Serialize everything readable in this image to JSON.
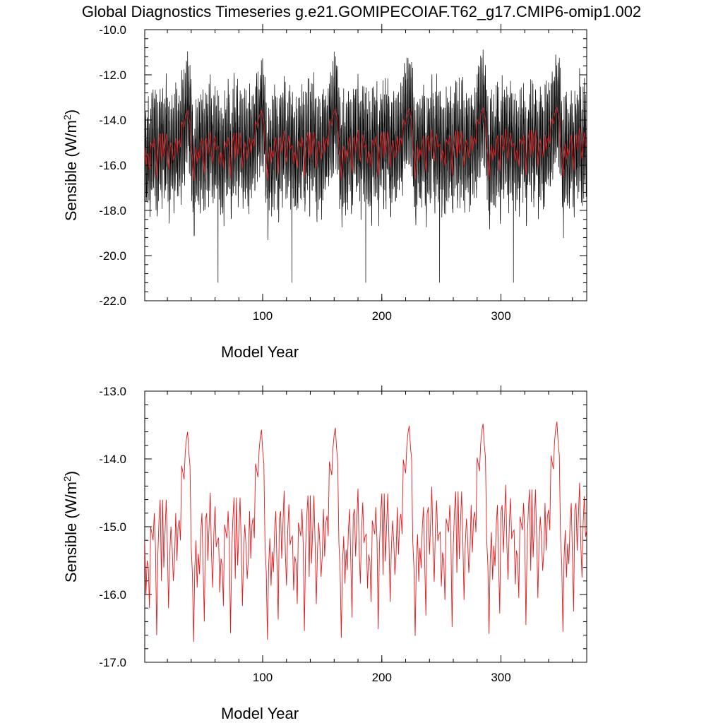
{
  "figure": {
    "title": "Global Diagnostics Timeseries g.e21.GOMIPECOIAF.T62_g17.CMIP6-omip1.002"
  },
  "chart_data": [
    {
      "type": "line",
      "xlabel": "Model Year",
      "ylabel": "Sensible (W/m²)",
      "ylabel_base": "Sensible (W/m",
      "ylabel_sup": "2",
      "ylabel_close": ")",
      "xlim": [
        1,
        372
      ],
      "ylim": [
        -22.0,
        -10.0
      ],
      "xticks": [
        100,
        200,
        300
      ],
      "yticks": [
        "-22.0",
        "-20.0",
        "-18.0",
        "-16.0",
        "-14.0",
        "-12.0",
        "-10.0"
      ],
      "grid": false,
      "legend": "none",
      "colors": {
        "monthly": "#000000",
        "annual": "#e41a1c"
      },
      "series_description": {
        "monthly": "Monthly global mean values oscillating roughly between -19.0 and -13.0, with spikes down to about -21.2 near years 62, 124, 186, 248, 310 and peaks near -11.5 shortly before each spike (repeating ~62-year forcing cycle).",
        "annual": "Annual means (same as lower panel) overlaid in red."
      },
      "monthly_range_typical": [
        -19.0,
        -13.0
      ],
      "monthly_min_spikes": [
        {
          "x": 62,
          "y": -21.2
        },
        {
          "x": 124,
          "y": -21.2
        },
        {
          "x": 186,
          "y": -21.2
        },
        {
          "x": 248,
          "y": -21.2
        },
        {
          "x": 310,
          "y": -21.2
        }
      ],
      "monthly_max_peaks": [
        {
          "x": 58,
          "y": -11.8
        },
        {
          "x": 120,
          "y": -11.6
        },
        {
          "x": 182,
          "y": -11.7
        },
        {
          "x": 244,
          "y": -11.6
        },
        {
          "x": 306,
          "y": -11.5
        },
        {
          "x": 370,
          "y": -11.8
        }
      ]
    },
    {
      "type": "line",
      "xlabel": "Model Year",
      "ylabel": "Sensible (W/m²)",
      "ylabel_base": "Sensible (W/m",
      "ylabel_sup": "2",
      "ylabel_close": ")",
      "xlim": [
        1,
        372
      ],
      "ylim": [
        -17.0,
        -13.0
      ],
      "xticks": [
        100,
        200,
        300
      ],
      "yticks": [
        "-17.0",
        "-16.0",
        "-15.0",
        "-14.0",
        "-13.0"
      ],
      "grid": false,
      "legend": "none",
      "colors": {
        "annual": "#e41a1c"
      },
      "cycle_length_years": 62,
      "cycles": 6,
      "cycle_template": {
        "description": "Annual mean sensible heat flux for one 62-year forcing cycle; repeats 6 times with slight upward drift.",
        "x_offsets": [
          0,
          1,
          2,
          3,
          4,
          5,
          6,
          7,
          8,
          9,
          10,
          11,
          12,
          13,
          14,
          15,
          16,
          17,
          18,
          19,
          20,
          21,
          22,
          23,
          24,
          25,
          26,
          27,
          28,
          29,
          30,
          31,
          32,
          33,
          34,
          35,
          36,
          37,
          38,
          39,
          40,
          41,
          42,
          43,
          44,
          45,
          46,
          47,
          48,
          49,
          50,
          51,
          52,
          53,
          54,
          55,
          56,
          57,
          58,
          59,
          60,
          61
        ],
        "values": [
          -15.2,
          -16.0,
          -15.5,
          -15.6,
          -16.2,
          -15.0,
          -15.1,
          -15.2,
          -14.8,
          -15.3,
          -16.6,
          -15.4,
          -14.9,
          -14.6,
          -15.8,
          -14.6,
          -15.6,
          -15.1,
          -14.6,
          -15.3,
          -16.2,
          -15.4,
          -15.0,
          -15.3,
          -15.8,
          -15.5,
          -14.8,
          -15.5,
          -15.0,
          -14.9,
          -15.2,
          -14.1,
          -14.2,
          -14.3,
          -13.9,
          -13.7,
          -13.6,
          -13.9,
          -14.1,
          -15.3,
          -15.7,
          -16.7,
          -15.6,
          -15.2,
          -15.9,
          -15.4,
          -15.7,
          -15.1,
          -14.8,
          -15.6,
          -16.4,
          -14.9,
          -14.8,
          -15.5,
          -15.0,
          -14.5,
          -15.4,
          -15.9,
          -15.1,
          -14.7,
          -15.3,
          -15.2
        ]
      },
      "key_points": [
        {
          "x": 13,
          "y": -16.6
        },
        {
          "x": 60,
          "y": -13.65
        },
        {
          "x": 64,
          "y": -16.7
        },
        {
          "x": 122,
          "y": -13.55
        },
        {
          "x": 126,
          "y": -16.6
        },
        {
          "x": 184,
          "y": -13.5
        },
        {
          "x": 187,
          "y": -16.6
        },
        {
          "x": 246,
          "y": -13.5
        },
        {
          "x": 250,
          "y": -16.55
        },
        {
          "x": 308,
          "y": -13.5
        },
        {
          "x": 312,
          "y": -16.55
        },
        {
          "x": 371,
          "y": -13.45
        }
      ]
    }
  ]
}
